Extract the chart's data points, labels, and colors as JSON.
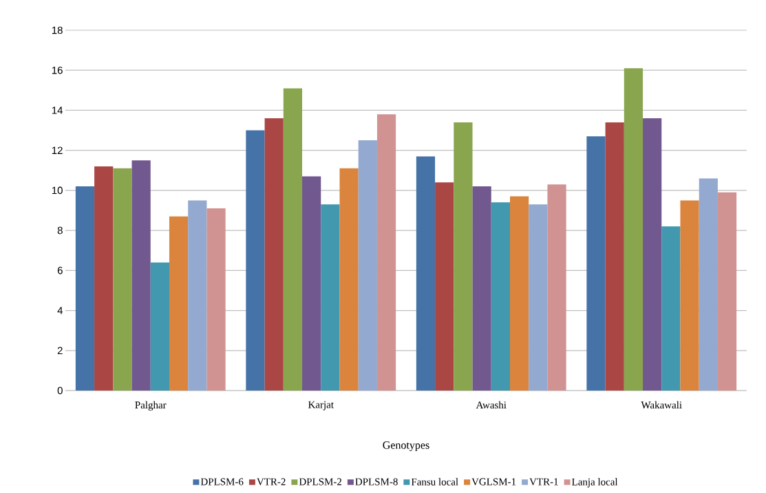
{
  "chart_data": {
    "type": "bar",
    "xlabel": "Genotypes",
    "categories": [
      "Palghar",
      "Karjat",
      "Awashi",
      "Wakawali"
    ],
    "series": [
      {
        "name": "DPLSM-6",
        "color": "#4572a7",
        "values": [
          10.2,
          13.0,
          11.7,
          12.7
        ]
      },
      {
        "name": "VTR-2",
        "color": "#aa4643",
        "values": [
          11.2,
          13.6,
          10.4,
          13.4
        ]
      },
      {
        "name": "DPLSM-2",
        "color": "#89a54e",
        "values": [
          11.1,
          15.1,
          13.4,
          16.1
        ]
      },
      {
        "name": "DPLSM-8",
        "color": "#71588f",
        "values": [
          11.5,
          10.7,
          10.2,
          13.6
        ]
      },
      {
        "name": "Fansu local",
        "color": "#4198af",
        "values": [
          6.4,
          9.3,
          9.4,
          8.2
        ]
      },
      {
        "name": "VGLSM-1",
        "color": "#db843d",
        "values": [
          8.7,
          11.1,
          9.7,
          9.5
        ]
      },
      {
        "name": "VTR-1",
        "color": "#93a9cf",
        "values": [
          9.5,
          12.5,
          9.3,
          10.6
        ]
      },
      {
        "name": "Lanja local",
        "color": "#d19392",
        "values": [
          9.1,
          13.8,
          10.3,
          9.9
        ]
      }
    ],
    "ylim": [
      0,
      18
    ],
    "yticks": [
      0,
      2,
      4,
      6,
      8,
      10,
      12,
      14,
      16,
      18
    ],
    "grid": "y",
    "legend": "bottom"
  }
}
